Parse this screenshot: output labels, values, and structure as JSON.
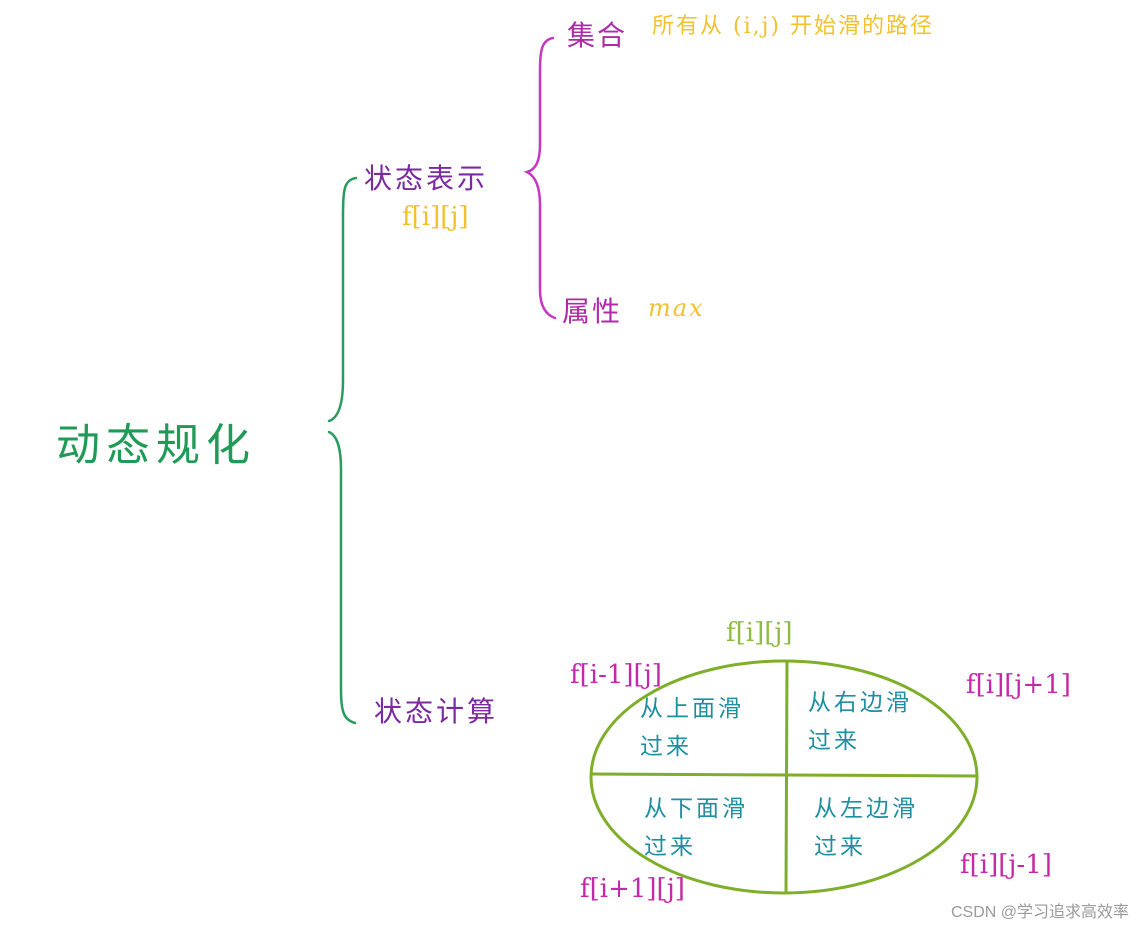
{
  "root": {
    "label": "动态规化"
  },
  "state_representation": {
    "label": "状态表示",
    "notation": "f[i][j]",
    "set": {
      "label": "集合",
      "description": "所有从 (i,j) 开始滑的路径"
    },
    "attribute": {
      "label": "属性",
      "value": "max"
    }
  },
  "state_computation": {
    "label": "状态计算",
    "center": "f[i][j]",
    "cells": {
      "top_left": "从上面滑过来",
      "top_right": "从右边滑过来",
      "bottom_left": "从下面滑过来",
      "bottom_right": "从左边滑过来"
    },
    "neighbors": {
      "top_left": "f[i-1][j]",
      "top_right": "f[i][j+1]",
      "bottom_left": "f[i+1][j]",
      "bottom_right": "f[i][j-1]"
    }
  },
  "colors": {
    "root": "#1f9a57",
    "brace_level1": "#2a9a5f",
    "brace_level2": "#c637c2",
    "branch_label": "#7b2aa0",
    "leaf_label": "#b02aa8",
    "annotation_yellow": "#f2c22e",
    "annotation_magenta": "#c42aa8",
    "ellipse": "#7fae2b",
    "cell_text": "#1e8fa0"
  },
  "watermark": "CSDN @学习追求高效率"
}
